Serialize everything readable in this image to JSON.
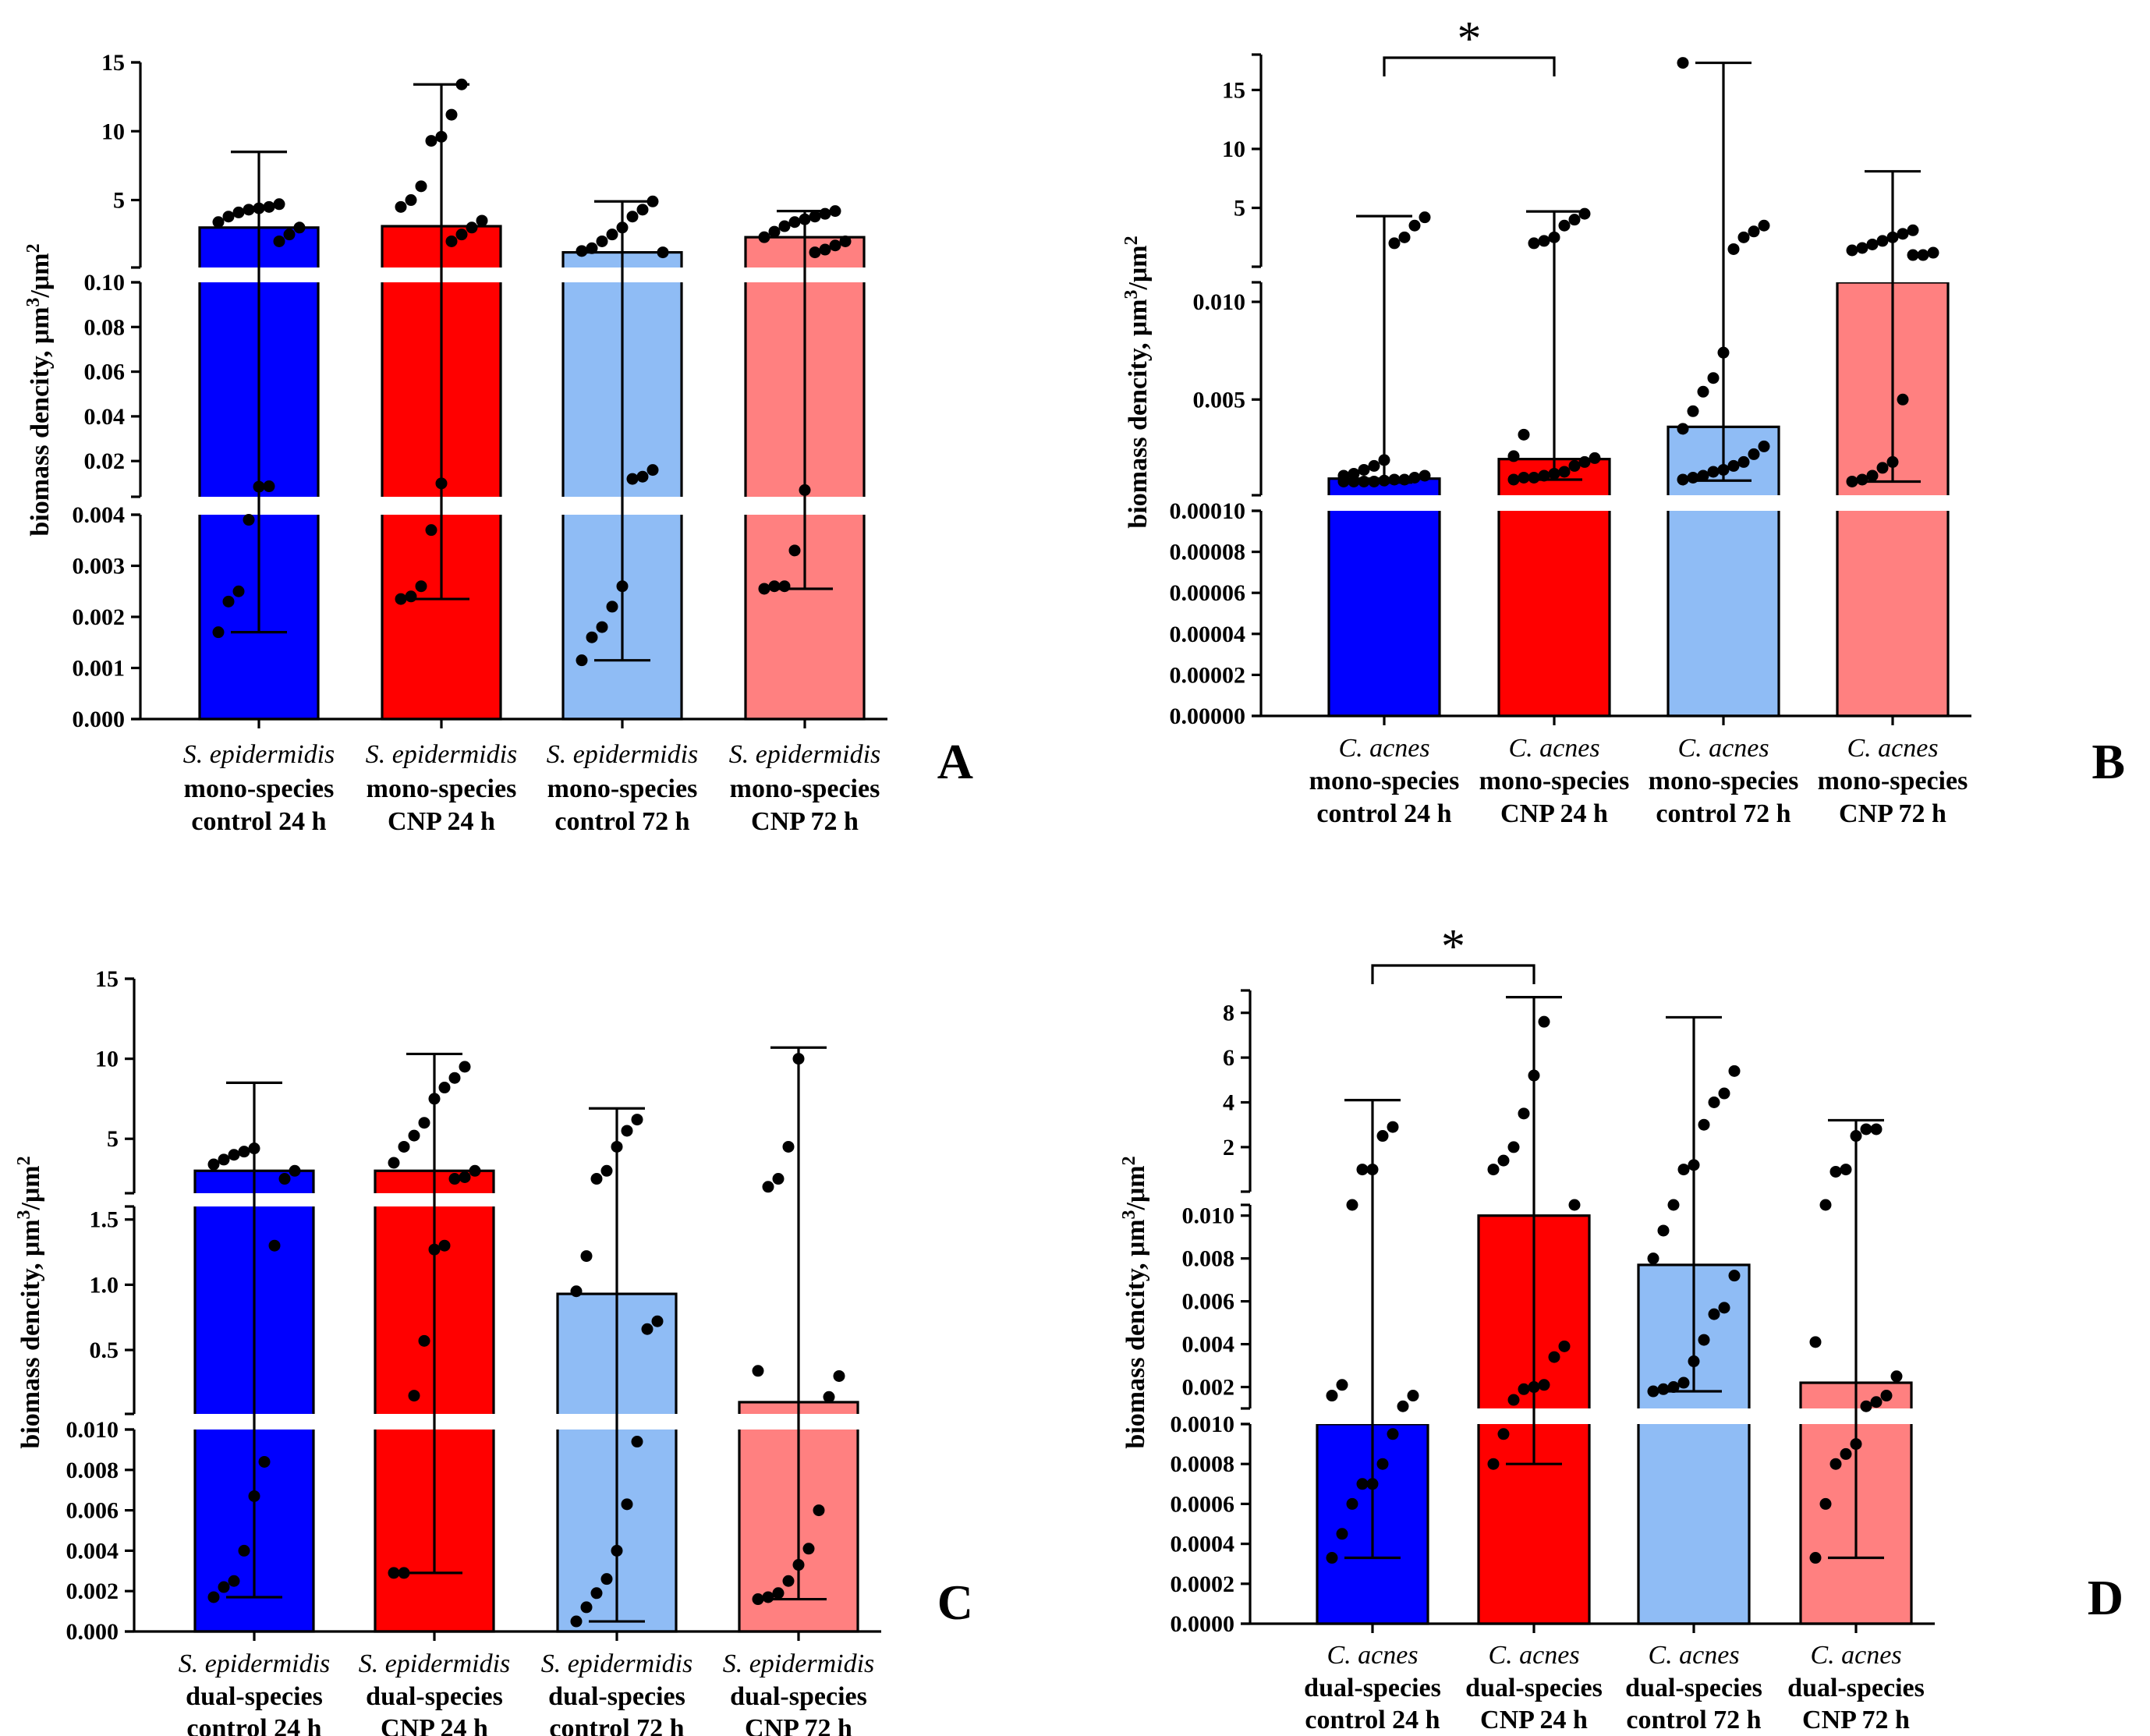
{
  "figure": {
    "ylabel_prefix": "biomass dencity, μm",
    "ylabel_sup": "3",
    "ylabel_mid": "/μm",
    "ylabel_sup2": "2"
  },
  "chart_data": [
    {
      "type": "bar",
      "panel": "A",
      "xlabel": "",
      "ylabel": "biomass dencity, μm3/μm2",
      "categories": [
        {
          "species": "S. epidermidis",
          "line2": "mono-species",
          "line3": "control 24 h"
        },
        {
          "species": "S. epidermidis",
          "line2": "mono-species",
          "line3": "CNP 24 h"
        },
        {
          "species": "S. epidermidis",
          "line2": "mono-species",
          "line3": "control 72 h"
        },
        {
          "species": "S. epidermidis",
          "line2": "mono-species",
          "line3": "CNP 72 h"
        }
      ],
      "colors": [
        "#0000ff",
        "#ff0000",
        "#8fbcf5",
        "#ff8080"
      ],
      "segments": [
        {
          "min": 0,
          "max": 0.004,
          "ticks": [
            0,
            0.001,
            0.002,
            0.003,
            0.004
          ],
          "labels": [
            "0.000",
            "0.001",
            "0.002",
            "0.003",
            "0.004"
          ]
        },
        {
          "min": 0.004,
          "max": 0.1,
          "ticks": [
            0.02,
            0.04,
            0.06,
            0.08,
            0.1
          ],
          "labels": [
            "0.02",
            "0.04",
            "0.06",
            "0.08",
            "0.10"
          ]
        },
        {
          "min": 0.1,
          "max": 15,
          "ticks": [
            5,
            10,
            15
          ],
          "labels": [
            "5",
            "10",
            "15"
          ]
        }
      ],
      "bars": [
        3.0,
        3.1,
        1.2,
        2.3
      ],
      "whiskers": [
        [
          0.0017,
          8.5
        ],
        [
          0.00235,
          13.4
        ],
        [
          0.00115,
          4.9
        ],
        [
          0.00255,
          4.2
        ]
      ],
      "points": [
        [
          0.0017,
          0.0023,
          0.0025,
          0.0039,
          0.0085,
          0.0087,
          2.0,
          2.5,
          3.0,
          3.4,
          3.8,
          4.1,
          4.3,
          4.4,
          4.5,
          4.7
        ],
        [
          0.00235,
          0.0024,
          0.0026,
          0.0037,
          0.01,
          2.0,
          2.5,
          3.0,
          3.5,
          4.5,
          5.0,
          6.0,
          9.3,
          9.6,
          11.2,
          13.4
        ],
        [
          0.00115,
          0.0016,
          0.0018,
          0.0022,
          0.0026,
          0.012,
          0.013,
          0.016,
          1.2,
          1.3,
          1.5,
          2.0,
          2.5,
          3.0,
          3.8,
          4.3,
          4.9
        ],
        [
          0.00255,
          0.0026,
          0.0026,
          0.0033,
          0.007,
          1.2,
          1.4,
          1.7,
          2.0,
          2.3,
          2.7,
          3.1,
          3.4,
          3.6,
          3.8,
          4.0,
          4.2
        ]
      ],
      "significance": []
    },
    {
      "type": "bar",
      "panel": "B",
      "xlabel": "",
      "ylabel": "biomass dencity, μm3/μm2",
      "categories": [
        {
          "species": "C. acnes",
          "line2": "mono-species",
          "line3": "control 24 h"
        },
        {
          "species": "C. acnes",
          "line2": "mono-species",
          "line3": "CNP 24 h"
        },
        {
          "species": "C. acnes",
          "line2": "mono-species",
          "line3": "control 72 h"
        },
        {
          "species": "C. acnes",
          "line2": "mono-species",
          "line3": "CNP 72 h"
        }
      ],
      "colors": [
        "#0000ff",
        "#ff0000",
        "#8fbcf5",
        "#ff8080"
      ],
      "segments": [
        {
          "min": 0,
          "max": 0.0001,
          "ticks": [
            0,
            2e-05,
            4e-05,
            6e-05,
            8e-05,
            0.0001
          ],
          "labels": [
            "0.00000",
            "0.00002",
            "0.00004",
            "0.00006",
            "0.00008",
            "0.00010"
          ]
        },
        {
          "min": 0.0001,
          "max": 0.011,
          "ticks": [
            0.005,
            0.01
          ],
          "labels": [
            "0.005",
            "0.010"
          ]
        },
        {
          "min": 0.011,
          "max": 18,
          "ticks": [
            5,
            10,
            15
          ],
          "labels": [
            "5",
            "10",
            "15"
          ]
        }
      ],
      "bars": [
        0.00095,
        0.00195,
        0.0036,
        0.011
      ],
      "whiskers": [
        [
          0.00075,
          4.3
        ],
        [
          0.0009,
          4.7
        ],
        [
          0.00085,
          17.3
        ],
        [
          0.0008,
          8.1
        ]
      ],
      "points": [
        [
          0.0008,
          0.0008,
          0.0008,
          0.0008,
          0.00085,
          0.0009,
          0.0009,
          0.001,
          0.0011,
          0.0011,
          0.0012,
          0.0014,
          0.0016,
          0.0019,
          2.0,
          2.5,
          3.5,
          4.2
        ],
        [
          0.0009,
          0.001,
          0.001,
          0.0011,
          0.0012,
          0.0013,
          0.0016,
          0.0018,
          0.002,
          0.0021,
          0.0032,
          2.0,
          2.2,
          2.5,
          3.5,
          4.0,
          4.5
        ],
        [
          0.0009,
          0.001,
          0.0011,
          0.0013,
          0.0014,
          0.0016,
          0.0018,
          0.0022,
          0.0026,
          0.0035,
          0.0044,
          0.0054,
          0.0061,
          0.0074,
          1.5,
          2.5,
          3.0,
          3.5,
          17.3
        ],
        [
          0.0008,
          0.0009,
          0.0011,
          0.0015,
          0.0018,
          0.005,
          1.0,
          1.0,
          1.2,
          1.4,
          1.6,
          1.9,
          2.2,
          2.5,
          2.8,
          3.1
        ]
      ],
      "significance": [
        {
          "from": 0,
          "to": 1,
          "label": "*"
        }
      ]
    },
    {
      "type": "bar",
      "panel": "C",
      "xlabel": "",
      "ylabel": "biomass dencity, μm3/μm2",
      "categories": [
        {
          "species": "S. epidermidis",
          "line2": "dual-species",
          "line3": "control 24 h"
        },
        {
          "species": "S. epidermidis",
          "line2": "dual-species",
          "line3": "CNP 24 h"
        },
        {
          "species": "S. epidermidis",
          "line2": "dual-species",
          "line3": "control 72 h"
        },
        {
          "species": "S. epidermidis",
          "line2": "dual-species",
          "line3": "CNP 72 h"
        }
      ],
      "colors": [
        "#0000ff",
        "#ff0000",
        "#8fbcf5",
        "#ff8080"
      ],
      "segments": [
        {
          "min": 0,
          "max": 0.01,
          "ticks": [
            0,
            0.002,
            0.004,
            0.006,
            0.008,
            0.01
          ],
          "labels": [
            "0.000",
            "0.002",
            "0.004",
            "0.006",
            "0.008",
            "0.010"
          ]
        },
        {
          "min": 0.01,
          "max": 1.6,
          "ticks": [
            0.5,
            1.0,
            1.5
          ],
          "labels": [
            "0.5",
            "1.0",
            "1.5"
          ]
        },
        {
          "min": 1.6,
          "max": 15,
          "ticks": [
            5,
            10,
            15
          ],
          "labels": [
            "5",
            "10",
            "15"
          ]
        }
      ],
      "bars": [
        3.0,
        3.0,
        0.93,
        0.1
      ],
      "whiskers": [
        [
          0.0017,
          8.5
        ],
        [
          0.0029,
          10.3
        ],
        [
          0.0005,
          6.9
        ],
        [
          0.0016,
          10.7
        ]
      ],
      "points": [
        [
          0.0017,
          0.0022,
          0.0025,
          0.004,
          0.0067,
          0.0084,
          1.3,
          2.5,
          3.0,
          3.4,
          3.7,
          4.0,
          4.2,
          4.4
        ],
        [
          0.0029,
          0.0029,
          0.15,
          0.57,
          1.27,
          1.3,
          2.5,
          2.6,
          3.0,
          3.5,
          4.5,
          5.2,
          6.0,
          7.5,
          8.2,
          8.8,
          9.5
        ],
        [
          0.0005,
          0.0012,
          0.0019,
          0.0026,
          0.004,
          0.0063,
          0.0094,
          0.66,
          0.72,
          0.95,
          1.22,
          2.5,
          3.0,
          4.5,
          5.5,
          6.2
        ],
        [
          0.0016,
          0.0017,
          0.0019,
          0.0025,
          0.0033,
          0.0041,
          0.006,
          0.14,
          0.3,
          0.34,
          2.0,
          2.5,
          4.5,
          10.0
        ]
      ],
      "significance": []
    },
    {
      "type": "bar",
      "panel": "D",
      "xlabel": "",
      "ylabel": "biomass dencity, μm3/μm2",
      "categories": [
        {
          "species": "C. acnes",
          "line2": "dual-species",
          "line3": "control 24 h"
        },
        {
          "species": "C. acnes",
          "line2": "dual-species",
          "line3": "CNP 24 h"
        },
        {
          "species": "C. acnes",
          "line2": "dual-species",
          "line3": "control 72 h"
        },
        {
          "species": "C. acnes",
          "line2": "dual-species",
          "line3": "CNP 72 h"
        }
      ],
      "colors": [
        "#0000ff",
        "#ff0000",
        "#8fbcf5",
        "#ff8080"
      ],
      "segments": [
        {
          "min": 0,
          "max": 0.001,
          "ticks": [
            0,
            0.0002,
            0.0004,
            0.0006,
            0.0008,
            0.001
          ],
          "labels": [
            "0.0000",
            "0.0002",
            "0.0004",
            "0.0006",
            "0.0008",
            "0.0010"
          ]
        },
        {
          "min": 0.001,
          "max": 0.0105,
          "ticks": [
            0.002,
            0.004,
            0.006,
            0.008,
            0.01
          ],
          "labels": [
            "0.002",
            "0.004",
            "0.006",
            "0.008",
            "0.010"
          ]
        },
        {
          "min": 0.0105,
          "max": 9,
          "ticks": [
            2,
            4,
            6,
            8
          ],
          "labels": [
            "2",
            "4",
            "6",
            "8"
          ]
        }
      ],
      "bars": [
        0.001,
        0.01,
        0.0077,
        0.0022
      ],
      "whiskers": [
        [
          0.00033,
          4.1
        ],
        [
          0.0008,
          8.7
        ],
        [
          0.0018,
          7.8
        ],
        [
          0.00033,
          3.2
        ]
      ],
      "points": [
        [
          0.00033,
          0.00045,
          0.0006,
          0.0007,
          0.0007,
          0.0008,
          0.00095,
          0.0011,
          0.0016,
          0.0016,
          0.0021,
          0.0105,
          1.0,
          1.0,
          2.5,
          2.9
        ],
        [
          0.0008,
          0.00095,
          0.0014,
          0.0019,
          0.002,
          0.0021,
          0.0034,
          0.0039,
          0.0105,
          1.0,
          1.4,
          2.0,
          3.5,
          5.2,
          7.6
        ],
        [
          0.0018,
          0.0019,
          0.002,
          0.0022,
          0.0032,
          0.0042,
          0.0054,
          0.0057,
          0.0072,
          0.008,
          0.0093,
          0.0105,
          1.0,
          1.2,
          3.0,
          4.0,
          4.4,
          5.4
        ],
        [
          0.00033,
          0.0006,
          0.0008,
          0.00085,
          0.0009,
          0.0011,
          0.0013,
          0.0016,
          0.0025,
          0.0041,
          0.0105,
          0.9,
          1.0,
          2.5,
          2.8,
          2.8
        ]
      ],
      "significance": [
        {
          "from": 0,
          "to": 1,
          "label": "*"
        }
      ]
    }
  ]
}
